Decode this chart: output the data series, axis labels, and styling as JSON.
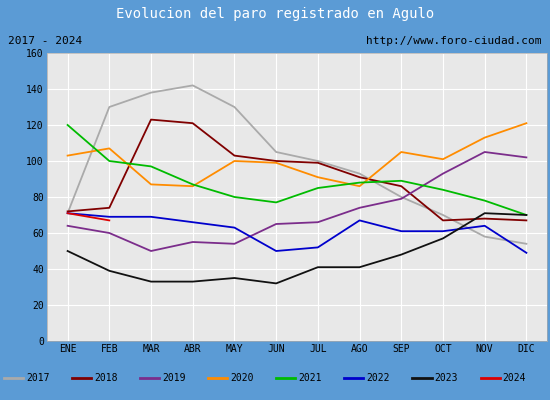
{
  "title": "Evolucion del paro registrado en Agulo",
  "title_bg": "#5b9bd5",
  "subtitle_left": "2017 - 2024",
  "subtitle_right": "http://www.foro-ciudad.com",
  "months": [
    "ENE",
    "FEB",
    "MAR",
    "ABR",
    "MAY",
    "JUN",
    "JUL",
    "AGO",
    "SEP",
    "OCT",
    "NOV",
    "DIC"
  ],
  "ylim": [
    0,
    160
  ],
  "yticks": [
    0,
    20,
    40,
    60,
    80,
    100,
    120,
    140,
    160
  ],
  "series": [
    {
      "year": "2017",
      "color": "#aaaaaa",
      "values": [
        71,
        130,
        138,
        142,
        130,
        105,
        100,
        93,
        80,
        70,
        58,
        54
      ]
    },
    {
      "year": "2018",
      "color": "#800000",
      "values": [
        72,
        74,
        123,
        121,
        103,
        100,
        99,
        91,
        86,
        67,
        68,
        67
      ]
    },
    {
      "year": "2019",
      "color": "#7b2d8b",
      "values": [
        64,
        60,
        50,
        55,
        54,
        65,
        66,
        74,
        79,
        93,
        105,
        102
      ]
    },
    {
      "year": "2020",
      "color": "#ff8c00",
      "values": [
        103,
        107,
        87,
        86,
        100,
        99,
        91,
        86,
        105,
        101,
        113,
        121
      ]
    },
    {
      "year": "2021",
      "color": "#00bb00",
      "values": [
        120,
        100,
        97,
        87,
        80,
        77,
        85,
        88,
        89,
        84,
        78,
        70
      ]
    },
    {
      "year": "2022",
      "color": "#0000cc",
      "values": [
        71,
        69,
        69,
        66,
        63,
        50,
        52,
        67,
        61,
        61,
        64,
        49
      ]
    },
    {
      "year": "2023",
      "color": "#111111",
      "values": [
        50,
        39,
        33,
        33,
        35,
        32,
        41,
        41,
        48,
        57,
        71,
        70
      ]
    },
    {
      "year": "2024",
      "color": "#dd0000",
      "values": [
        71,
        67,
        null,
        null,
        null,
        null,
        null,
        null,
        null,
        null,
        null,
        null
      ]
    }
  ],
  "fig_bg": "#5b9bd5",
  "plot_bg": "#e8e8e8",
  "grid_color": "#ffffff",
  "subtitle_bg": "#f0f0f0",
  "legend_bg": "#f0f0f0"
}
